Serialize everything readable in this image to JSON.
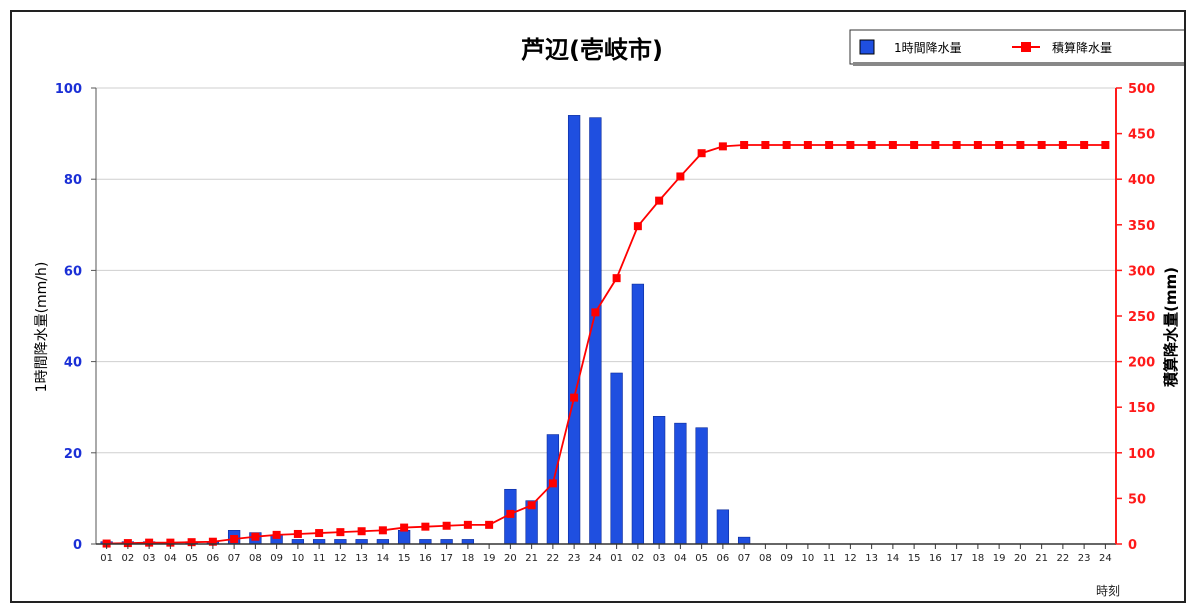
{
  "chart_data": {
    "type": "bar+line",
    "title": "芦辺(壱岐市)",
    "xlabel": "時刻",
    "ylabel_left": "1時間降水量(mm/h)",
    "ylabel_right": "積算降水量(mm)",
    "ylim_left": [
      0,
      100
    ],
    "ylim_right": [
      0,
      500
    ],
    "yticks_left": [
      0,
      20,
      40,
      60,
      80,
      100
    ],
    "yticks_right": [
      0,
      50,
      100,
      150,
      200,
      250,
      300,
      350,
      400,
      450,
      500
    ],
    "categories": [
      "01",
      "02",
      "03",
      "04",
      "05",
      "06",
      "07",
      "08",
      "09",
      "10",
      "11",
      "12",
      "13",
      "14",
      "15",
      "16",
      "17",
      "18",
      "19",
      "20",
      "21",
      "22",
      "23",
      "24",
      "01",
      "02",
      "03",
      "04",
      "05",
      "06",
      "07",
      "08",
      "09",
      "10",
      "11",
      "12",
      "13",
      "14",
      "15",
      "16",
      "17",
      "18",
      "19",
      "20",
      "21",
      "22",
      "23",
      "24"
    ],
    "grid": true,
    "legend_position": "top-right",
    "colors": {
      "bar": "#1f4fe0",
      "line": "#ff0000",
      "left_axis": "#1a2fd6",
      "right_axis": "#ff1a1a"
    },
    "series": [
      {
        "name": "1時間降水量",
        "type": "bar",
        "axis": "left",
        "values": [
          0.5,
          0.5,
          0.5,
          0,
          0.5,
          0.5,
          3,
          2.5,
          2,
          1,
          1,
          1,
          1,
          1,
          3,
          1,
          1,
          1,
          0,
          12,
          9.5,
          24,
          94,
          93.5,
          37.5,
          57,
          28,
          26.5,
          25.5,
          7.5,
          1.5,
          0,
          0,
          0,
          0,
          0,
          0,
          0,
          0,
          0,
          0,
          0,
          0,
          0,
          0,
          0,
          0,
          0
        ]
      },
      {
        "name": "積算降水量",
        "type": "line",
        "axis": "right",
        "values": [
          0.5,
          1,
          1.5,
          1.5,
          2,
          2.5,
          5.5,
          8,
          10,
          11,
          12,
          13,
          14,
          15,
          18,
          19,
          20,
          21,
          21,
          33,
          42.5,
          66.5,
          160.5,
          254,
          291.5,
          348.5,
          376.5,
          403,
          428.5,
          436,
          437.5,
          437.5,
          437.5,
          437.5,
          437.5,
          437.5,
          437.5,
          437.5,
          437.5,
          437.5,
          437.5,
          437.5,
          437.5,
          437.5,
          437.5,
          437.5,
          437.5,
          437.5
        ]
      }
    ]
  }
}
